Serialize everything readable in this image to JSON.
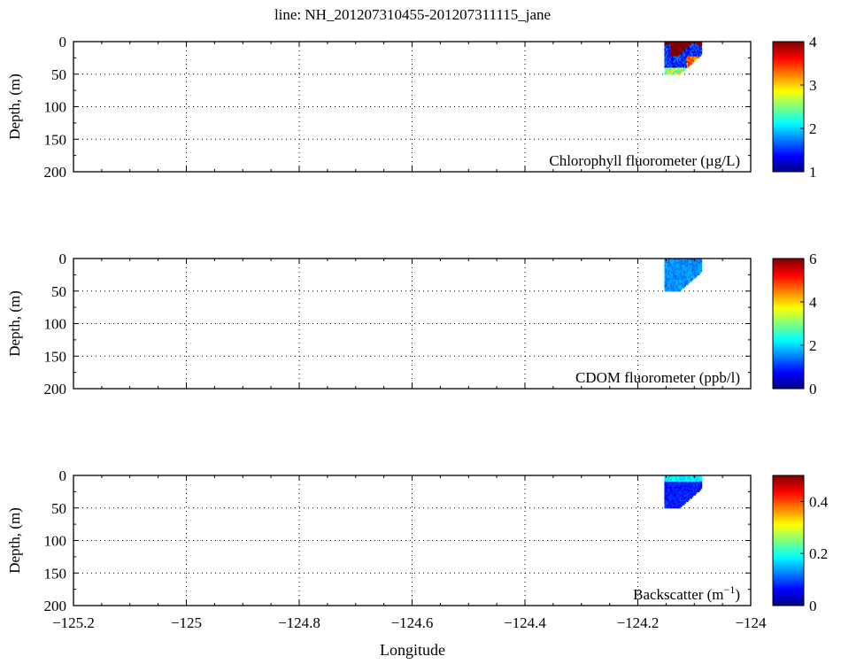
{
  "title": "line: NH_201207310455-201207311115_jane",
  "chart_data": [
    {
      "type": "heatmap",
      "label": "Chlorophyll fluorometer (µg/L)",
      "ylabel": "Depth, (m)",
      "xlim": [
        -125.2,
        -124
      ],
      "ylim": [
        0,
        200
      ],
      "yticks": [
        "0",
        "50",
        "100",
        "150",
        "200"
      ],
      "clim": [
        1,
        4
      ],
      "cticks": [
        "1",
        "2",
        "3",
        "4"
      ],
      "cticks_values": [
        1,
        2,
        3,
        4
      ],
      "profile": {
        "surface": 4,
        "middle": 1.2,
        "bottom": 2.6
      },
      "data_extent": {
        "lon": [
          -124.153,
          -124.087
        ],
        "depth": [
          0,
          50
        ]
      }
    },
    {
      "type": "heatmap",
      "label": "CDOM fluorometer (ppb/l)",
      "ylabel": "Depth, (m)",
      "xlim": [
        -125.2,
        -124
      ],
      "ylim": [
        0,
        200
      ],
      "yticks": [
        "0",
        "50",
        "100",
        "150",
        "200"
      ],
      "clim": [
        0,
        6
      ],
      "cticks": [
        "0",
        "2",
        "4",
        "6"
      ],
      "cticks_values": [
        0,
        2,
        4,
        6
      ],
      "profile": {
        "surface": 1.5,
        "middle": 1.6,
        "bottom": 1.7
      },
      "data_extent": {
        "lon": [
          -124.153,
          -124.087
        ],
        "depth": [
          0,
          50
        ]
      }
    },
    {
      "type": "heatmap",
      "label": "Backscatter (m",
      "label_sup": "−1",
      "label_end": ")",
      "ylabel": "Depth, (m)",
      "xlim": [
        -125.2,
        -124
      ],
      "ylim": [
        0,
        200
      ],
      "yticks": [
        "0",
        "50",
        "100",
        "150",
        "200"
      ],
      "clim": [
        0,
        0.5
      ],
      "cticks": [
        "0",
        "0.2",
        "0.4"
      ],
      "cticks_values": [
        0,
        0.2,
        0.4
      ],
      "profile": {
        "surface": 0.18,
        "middle": 0.05,
        "bottom": 0.08
      },
      "data_extent": {
        "lon": [
          -124.153,
          -124.087
        ],
        "depth": [
          0,
          50
        ]
      }
    }
  ],
  "xaxis": {
    "label": "Longitude",
    "ticks": [
      "−125.2",
      "−125",
      "−124.8",
      "−124.6",
      "−124.4",
      "−124.2",
      "−124"
    ],
    "tick_values": [
      -125.2,
      -125,
      -124.8,
      -124.6,
      -124.4,
      -124.2,
      -124
    ]
  }
}
